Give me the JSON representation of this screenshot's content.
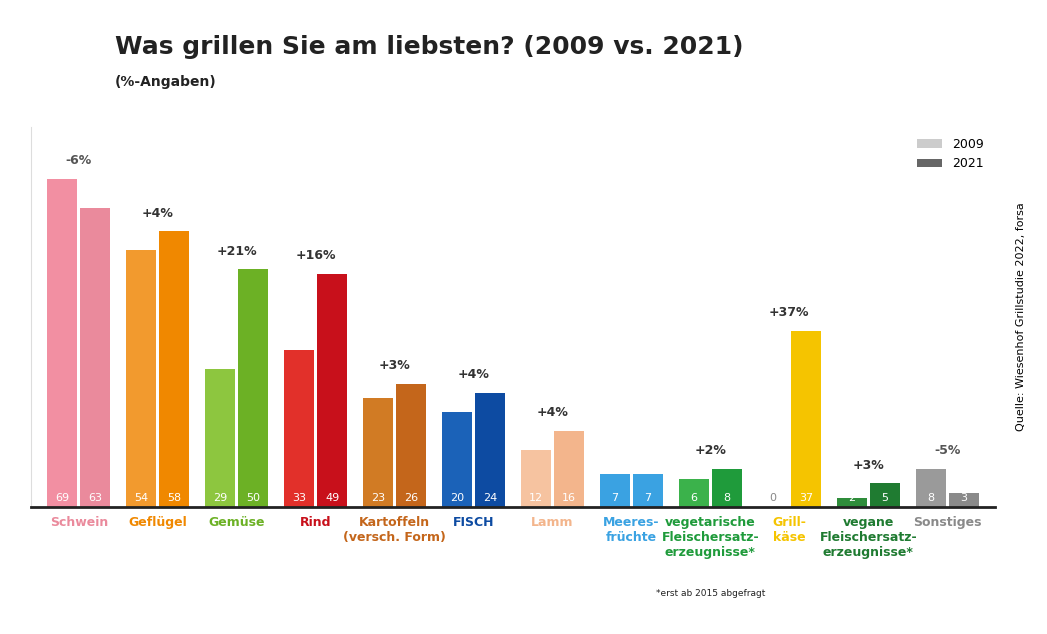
{
  "chart_data": {
    "type": "bar",
    "title": "Was grillen Sie am liebsten? (2009 vs. 2021)",
    "subtitle": "(%-Angaben)",
    "categories": [
      "Schwein",
      "Geflügel",
      "Gemüse",
      "Rind",
      "Kartoffeln\n(versch. Form)",
      "FISCH",
      "Lamm",
      "Meeres-\nfrüchte",
      "vegetarische\nFleischersatz-\nerzeugnisse*",
      "Grill-\nkäse",
      "vegane\nFleischersatz-\nerzeugnisse*",
      "Sonstiges"
    ],
    "series": [
      {
        "name": "2009",
        "values": [
          69,
          54,
          29,
          33,
          23,
          20,
          12,
          7,
          6,
          0,
          2,
          8
        ],
        "colors": [
          "#f28fa2",
          "#f29a2e",
          "#8dc63f",
          "#e2302a",
          "#d17b24",
          "#1b62b8",
          "#f6c3a0",
          "#3aa2e2",
          "#3bb24b",
          "#f5c400",
          "#2f8d3b",
          "#9a9a9a"
        ]
      },
      {
        "name": "2021",
        "values": [
          63,
          58,
          50,
          49,
          26,
          24,
          16,
          7,
          8,
          37,
          5,
          3
        ],
        "colors": [
          "#ea8a9c",
          "#f08800",
          "#6cb125",
          "#c8101b",
          "#c4661b",
          "#0d4ba2",
          "#f3b58c",
          "#3aa2e2",
          "#1f9b3b",
          "#f5c400",
          "#1f7b31",
          "#8a8a8a"
        ]
      }
    ],
    "annotations": [
      "-6%",
      "+4%",
      "+21%",
      "+16%",
      "+3%",
      "+4%",
      "+4%",
      null,
      "+2%",
      "+37%",
      "+3%",
      "-5%"
    ],
    "footnote": "*erst ab 2015 abgefragt",
    "source": "Quelle: Wiesenhof Grillstudie 2022, forsa",
    "ylim": [
      0,
      80
    ],
    "yticks": [],
    "data_labels": true,
    "tick_labels": "x",
    "grid": false,
    "legend": "upper right"
  }
}
